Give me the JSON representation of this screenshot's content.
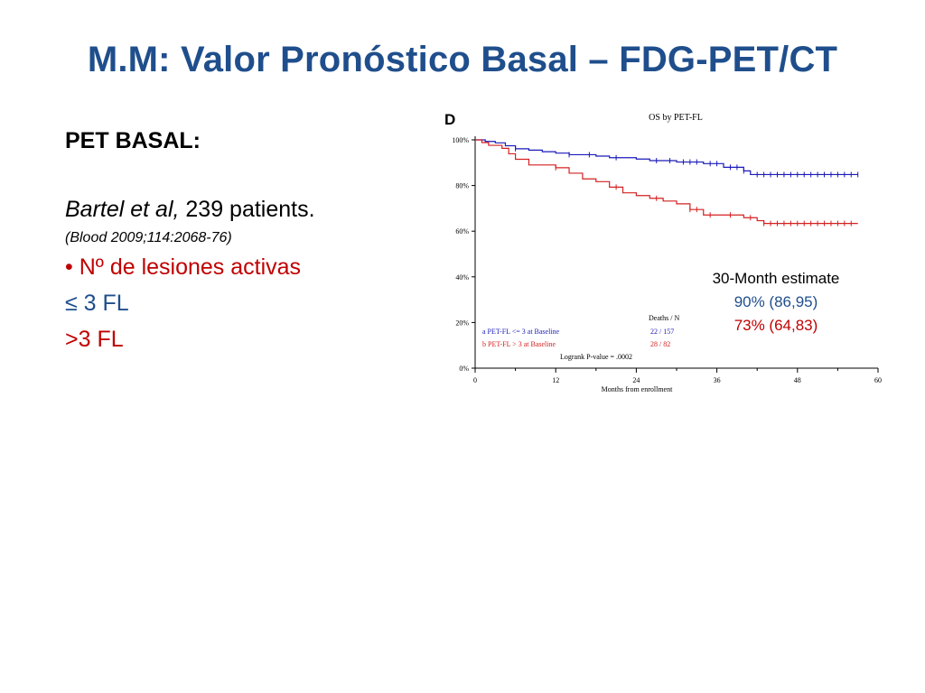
{
  "slide": {
    "title": "M.M: Valor Pronóstico Basal – FDG-PET/CT"
  },
  "left": {
    "heading": "PET BASAL:",
    "study_italic": "Bartel et al,",
    "study_rest": " 239 patients.",
    "citation": "(Blood 2009;114:2068-76)",
    "bullet": "• Nº de lesiones activas",
    "group1": "≤ 3 FL",
    "group2": ">3 FL"
  },
  "figure": {
    "panel_letter": "D",
    "estimate_heading": "30-Month estimate",
    "estimate_group1": "90% (86,95)",
    "estimate_group2": "73% (64,83)"
  },
  "chart_data": {
    "type": "line",
    "title": "OS by PET-FL",
    "xlabel": "Months from enrollment",
    "ylabel": "",
    "xlim": [
      0,
      60
    ],
    "ylim": [
      0,
      100
    ],
    "x_ticks": [
      "0",
      "12",
      "24",
      "36",
      "48",
      "60"
    ],
    "y_ticks": [
      "0%",
      "20%",
      "40%",
      "60%",
      "80%",
      "100%"
    ],
    "grid": false,
    "legend_placement": "bottom-left",
    "legend_header": "Deaths / N",
    "pvalue": "Logrank P-value = .0002",
    "colors": {
      "group1": "#1a1ab8",
      "group2": "#d42020"
    },
    "series": [
      {
        "name": "a PET-FL <= 3 at Baseline",
        "deaths_n": "22 / 157",
        "color": "#1a1ab8",
        "x": [
          0,
          1.5,
          3,
          4.5,
          6,
          8,
          10,
          12,
          14,
          18,
          20,
          24,
          26,
          28,
          30,
          34,
          36,
          37,
          40,
          41,
          44,
          57
        ],
        "y": [
          100,
          99.3,
          98.7,
          97.4,
          96.1,
          95.5,
          94.8,
          94.2,
          93.5,
          92.9,
          92.2,
          91.6,
          90.9,
          90.9,
          90.3,
          89.6,
          89.6,
          88.0,
          86.4,
          84.8,
          84.8,
          84.8
        ]
      },
      {
        "name": "b PET-FL > 3 at Baseline",
        "deaths_n": "28 / 82",
        "color": "#d42020",
        "x": [
          0,
          1,
          2,
          4,
          5,
          6,
          8,
          12,
          14,
          16,
          18,
          20,
          22,
          24,
          26,
          28,
          30,
          32,
          34,
          36,
          38,
          40,
          42,
          43,
          57
        ],
        "y": [
          100,
          98.8,
          97.6,
          96.3,
          93.9,
          91.5,
          89.0,
          87.8,
          85.4,
          82.9,
          81.7,
          79.3,
          76.8,
          75.6,
          74.4,
          73.2,
          72.0,
          69.5,
          67.1,
          67.1,
          67.1,
          65.9,
          64.6,
          63.4,
          63.4
        ]
      }
    ],
    "censor_marks": {
      "group1": [
        6,
        14,
        17,
        21,
        27,
        29,
        31,
        32,
        33,
        35,
        36,
        38,
        39,
        40,
        42,
        43,
        44,
        45,
        46,
        47,
        48,
        49,
        50,
        51,
        52,
        53,
        54,
        55,
        56,
        57
      ],
      "group2": [
        12,
        21,
        27,
        32,
        33,
        35,
        38,
        41,
        43,
        44,
        45,
        46,
        47,
        48,
        49,
        50,
        51,
        52,
        53,
        54,
        55,
        56
      ]
    }
  }
}
